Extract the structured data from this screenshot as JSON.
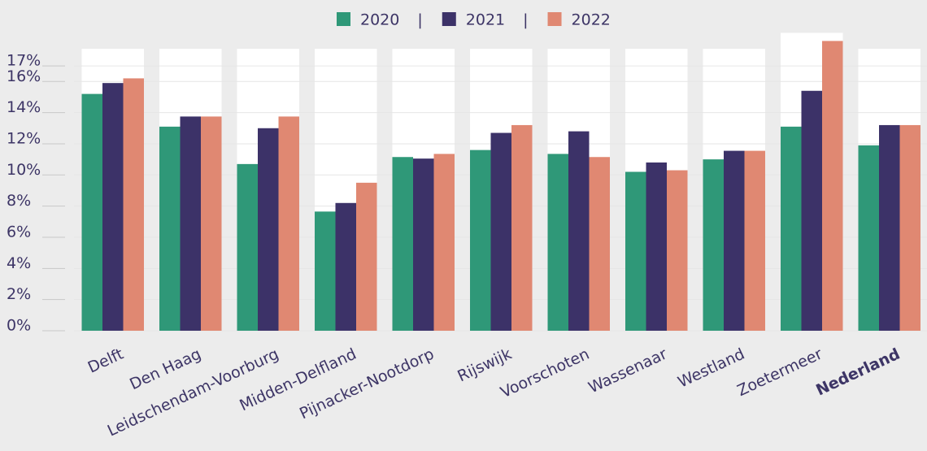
{
  "chart_data": {
    "type": "bar",
    "categories": [
      "Delft",
      "Den Haag",
      "Leidschendam-Voorburg",
      "Midden-Delfland",
      "Pijnacker-Nootdorp",
      "Rijswijk",
      "Voorschoten",
      "Wassenaar",
      "Westland",
      "Zoetermeer",
      "Nederland"
    ],
    "highlight": "Nederland",
    "legend_separator": "|",
    "series": [
      {
        "name": "2020",
        "color": "#2f9878",
        "values": [
          15.2,
          13.1,
          10.7,
          7.65,
          11.15,
          11.6,
          11.35,
          10.2,
          11.0,
          13.1,
          11.9
        ]
      },
      {
        "name": "2021",
        "color": "#3c3268",
        "values": [
          15.9,
          13.75,
          13.0,
          8.2,
          11.05,
          12.7,
          12.8,
          10.8,
          11.55,
          15.4,
          13.2
        ]
      },
      {
        "name": "2022",
        "color": "#e08872",
        "values": [
          16.2,
          13.75,
          13.75,
          9.5,
          11.35,
          13.2,
          11.15,
          10.3,
          11.55,
          18.6,
          13.2
        ]
      }
    ],
    "ylim": [
      0,
      18.1
    ],
    "yticks": [
      {
        "value": 0,
        "label": "0%"
      },
      {
        "value": 2,
        "label": "2%"
      },
      {
        "value": 4,
        "label": "4%"
      },
      {
        "value": 6,
        "label": "6%"
      },
      {
        "value": 8,
        "label": "8%"
      },
      {
        "value": 10,
        "label": "10%"
      },
      {
        "value": 12,
        "label": "12%"
      },
      {
        "value": 14,
        "label": "14%"
      },
      {
        "value": 16,
        "label": "16%"
      },
      {
        "value": 17,
        "label": "17%"
      }
    ],
    "grid": true
  }
}
